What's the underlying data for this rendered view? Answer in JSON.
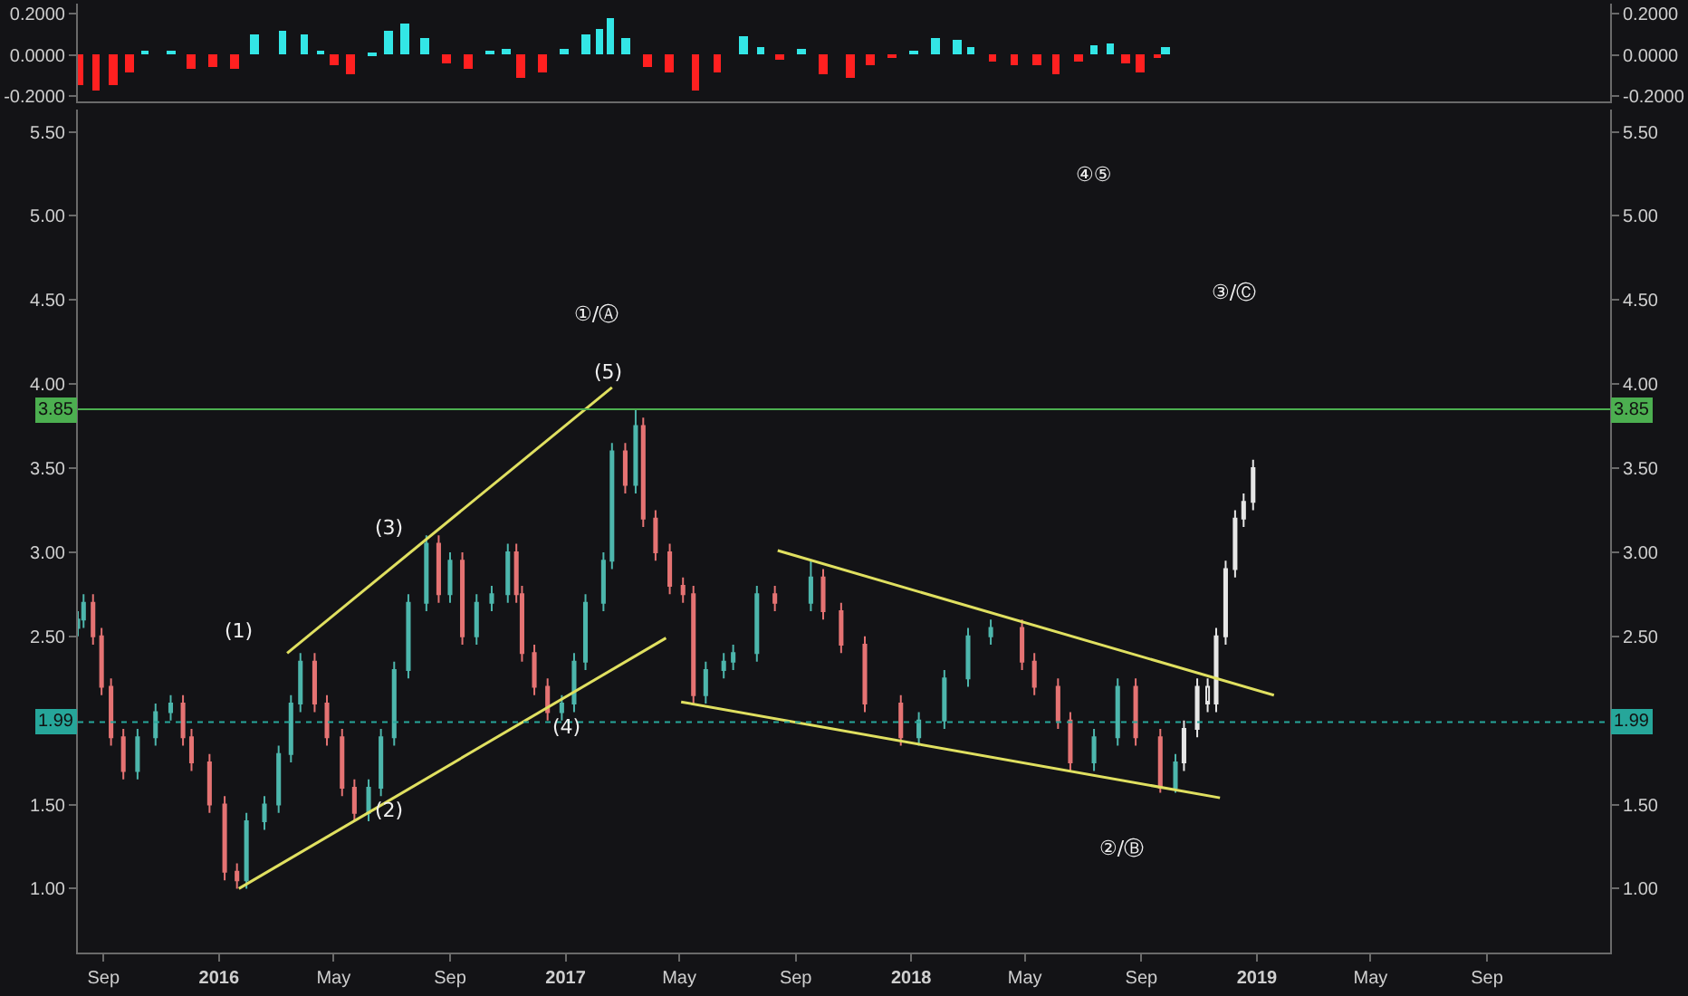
{
  "chart_data": [
    {
      "type": "bar",
      "tick_labels": "y",
      "x": [
        "2015-08-06",
        "2015-08-24",
        "2015-09-11",
        "2015-09-28",
        "2015-10-15",
        "2015-11-11",
        "2015-12-03",
        "2015-12-26",
        "2016-01-18",
        "2016-02-08",
        "2016-03-08",
        "2016-03-31",
        "2016-04-17",
        "2016-05-02",
        "2016-05-19",
        "2016-06-11",
        "2016-06-28",
        "2016-07-15",
        "2016-08-05",
        "2016-08-28",
        "2016-09-20",
        "2016-10-13",
        "2016-10-30",
        "2016-11-14",
        "2016-12-07",
        "2016-12-30",
        "2017-01-22",
        "2017-02-06",
        "2017-02-17",
        "2017-03-06",
        "2017-03-29",
        "2017-04-21",
        "2017-05-18",
        "2017-06-10",
        "2017-07-08",
        "2017-07-26",
        "2017-08-15",
        "2017-09-07",
        "2017-09-30",
        "2017-10-29",
        "2017-11-19",
        "2017-12-12",
        "2018-01-03",
        "2018-01-26",
        "2018-02-18",
        "2018-03-05",
        "2018-03-28",
        "2018-04-20",
        "2018-05-13",
        "2018-06-03",
        "2018-06-26",
        "2018-07-13",
        "2018-07-30",
        "2018-08-16",
        "2018-08-31",
        "2018-09-18",
        "2018-09-27"
      ],
      "values": [
        -0.15,
        -0.17,
        -0.15,
        -0.08,
        0.02,
        0.02,
        -0.07,
        -0.06,
        -0.07,
        0.1,
        0.12,
        0.1,
        0.02,
        -0.05,
        -0.09,
        0.01,
        0.12,
        0.15,
        0.08,
        -0.04,
        -0.07,
        0.02,
        0.03,
        -0.11,
        -0.08,
        0.03,
        0.1,
        0.13,
        0.18,
        0.08,
        -0.06,
        -0.08,
        -0.17,
        -0.08,
        0.09,
        0.04,
        -0.02,
        0.03,
        -0.09,
        -0.11,
        -0.05,
        -0.01,
        0.02,
        0.08,
        0.07,
        0.04,
        -0.03,
        -0.05,
        -0.05,
        -0.09,
        -0.03,
        0.05,
        0.06,
        -0.04,
        -0.08,
        -0.01,
        0.04
      ],
      "colors": [
        "#ff2020",
        "#ff2020",
        "#ff2020",
        "#ff2020",
        "#33e6e6",
        "#33e6e6",
        "#ff2020",
        "#ff2020",
        "#ff2020",
        "#33e6e6",
        "#33e6e6",
        "#33e6e6",
        "#33e6e6",
        "#ff2020",
        "#ff2020",
        "#33e6e6",
        "#33e6e6",
        "#33e6e6",
        "#33e6e6",
        "#ff2020",
        "#ff2020",
        "#33e6e6",
        "#33e6e6",
        "#ff2020",
        "#ff2020",
        "#33e6e6",
        "#33e6e6",
        "#33e6e6",
        "#33e6e6",
        "#33e6e6",
        "#ff2020",
        "#ff2020",
        "#ff2020",
        "#ff2020",
        "#33e6e6",
        "#33e6e6",
        "#ff2020",
        "#33e6e6",
        "#ff2020",
        "#ff2020",
        "#ff2020",
        "#ff2020",
        "#33e6e6",
        "#33e6e6",
        "#33e6e6",
        "#33e6e6",
        "#ff2020",
        "#ff2020",
        "#ff2020",
        "#ff2020",
        "#ff2020",
        "#33e6e6",
        "#33e6e6",
        "#ff2020",
        "#ff2020",
        "#ff2020",
        "#33e6e6"
      ],
      "xlim": [
        "2015-08-05",
        "2020-01-09"
      ],
      "ylim": [
        -0.225,
        0.25
      ],
      "yticks": [
        {
          "value": 0.2,
          "label": "0.2000"
        },
        {
          "value": 0,
          "label": "0.0000"
        },
        {
          "value": -0.2,
          "label": "-0.2000"
        }
      ],
      "y2lim": [
        -0.225,
        0.25
      ],
      "y2ticks": [
        {
          "value": 0.2,
          "label": "0.2000"
        },
        {
          "value": 0,
          "label": "0.0000"
        },
        {
          "value": -0.2,
          "label": "-0.2000"
        }
      ]
    },
    {
      "type": "candlestick",
      "series": [
        {
          "type": "candlestick",
          "color": "#4db6ac",
          "x": [
            "2015-08-05",
            "2015-08-11",
            "2015-10-07",
            "2015-10-26",
            "2015-11-11",
            "2016-01-30",
            "2016-02-18",
            "2016-03-04",
            "2016-03-17",
            "2016-03-27",
            "2016-06-07",
            "2016-06-20",
            "2016-07-04",
            "2016-07-19",
            "2016-08-07",
            "2016-09-01",
            "2016-09-29",
            "2016-10-15",
            "2016-11-01",
            "2016-12-28",
            "2017-01-10",
            "2017-01-22",
            "2017-02-10",
            "2017-02-19",
            "2017-03-16",
            "2017-05-29",
            "2017-06-17",
            "2017-06-27",
            "2017-07-22",
            "2017-09-17",
            "2018-01-09",
            "2018-02-05",
            "2018-03-02",
            "2018-03-26",
            "2018-07-13",
            "2018-08-07",
            "2018-10-07"
          ],
          "ohlc": [
            [
              2.55,
              2.65,
              2.5,
              2.6
            ],
            [
              2.6,
              2.75,
              2.55,
              2.7
            ],
            [
              1.7,
              1.95,
              1.65,
              1.9
            ],
            [
              1.9,
              2.1,
              1.85,
              2.05
            ],
            [
              2.05,
              2.15,
              2.0,
              2.1
            ],
            [
              1.05,
              1.45,
              1.0,
              1.4
            ],
            [
              1.4,
              1.55,
              1.35,
              1.5
            ],
            [
              1.5,
              1.85,
              1.45,
              1.8
            ],
            [
              1.8,
              2.15,
              1.75,
              2.1
            ],
            [
              2.1,
              2.4,
              2.05,
              2.35
            ],
            [
              1.45,
              1.65,
              1.4,
              1.6
            ],
            [
              1.6,
              1.95,
              1.55,
              1.9
            ],
            [
              1.9,
              2.35,
              1.85,
              2.3
            ],
            [
              2.3,
              2.75,
              2.25,
              2.7
            ],
            [
              2.7,
              3.1,
              2.65,
              3.05
            ],
            [
              2.75,
              3.0,
              2.7,
              2.95
            ],
            [
              2.5,
              2.75,
              2.45,
              2.7
            ],
            [
              2.7,
              2.8,
              2.65,
              2.75
            ],
            [
              2.75,
              3.05,
              2.7,
              3.0
            ],
            [
              2.05,
              2.15,
              2.0,
              2.1
            ],
            [
              2.1,
              2.4,
              2.05,
              2.35
            ],
            [
              2.35,
              2.75,
              2.3,
              2.7
            ],
            [
              2.7,
              3.0,
              2.65,
              2.95
            ],
            [
              2.95,
              3.65,
              2.9,
              3.6
            ],
            [
              3.4,
              3.85,
              3.35,
              3.75
            ],
            [
              2.15,
              2.35,
              2.1,
              2.3
            ],
            [
              2.3,
              2.4,
              2.25,
              2.35
            ],
            [
              2.35,
              2.45,
              2.3,
              2.4
            ],
            [
              2.4,
              2.8,
              2.35,
              2.75
            ],
            [
              2.7,
              2.95,
              2.65,
              2.85
            ],
            [
              1.9,
              2.05,
              1.85,
              2.0
            ],
            [
              2.0,
              2.3,
              1.95,
              2.25
            ],
            [
              2.25,
              2.55,
              2.2,
              2.5
            ],
            [
              2.5,
              2.6,
              2.45,
              2.55
            ],
            [
              1.75,
              1.95,
              1.7,
              1.9
            ],
            [
              1.9,
              2.25,
              1.85,
              2.2
            ],
            [
              1.6,
              1.8,
              1.57,
              1.75
            ]
          ]
        },
        {
          "type": "candlestick",
          "color": "#e57373",
          "x": [
            "2015-08-21",
            "2015-08-30",
            "2015-09-09",
            "2015-09-22",
            "2015-11-24",
            "2015-12-03",
            "2015-12-22",
            "2016-01-07",
            "2016-01-20",
            "2016-04-11",
            "2016-04-24",
            "2016-05-10",
            "2016-05-23",
            "2016-08-20",
            "2016-09-14",
            "2016-11-10",
            "2016-11-16",
            "2016-11-29",
            "2016-12-13",
            "2017-03-05",
            "2017-03-24",
            "2017-04-06",
            "2017-04-21",
            "2017-05-05",
            "2017-05-16",
            "2017-08-10",
            "2017-09-30",
            "2017-10-19",
            "2017-11-13",
            "2017-12-21",
            "2018-04-28",
            "2018-05-11",
            "2018-06-05",
            "2018-06-18",
            "2018-08-26",
            "2018-09-21"
          ],
          "ohlc": [
            [
              2.7,
              2.75,
              2.45,
              2.5
            ],
            [
              2.5,
              2.55,
              2.15,
              2.2
            ],
            [
              2.2,
              2.25,
              1.85,
              1.9
            ],
            [
              1.9,
              1.95,
              1.65,
              1.7
            ],
            [
              2.1,
              2.15,
              1.85,
              1.9
            ],
            [
              1.9,
              1.95,
              1.7,
              1.75
            ],
            [
              1.75,
              1.8,
              1.45,
              1.5
            ],
            [
              1.5,
              1.55,
              1.05,
              1.1
            ],
            [
              1.1,
              1.15,
              1.0,
              1.05
            ],
            [
              2.35,
              2.4,
              2.05,
              2.1
            ],
            [
              2.1,
              2.15,
              1.85,
              1.9
            ],
            [
              1.9,
              1.95,
              1.55,
              1.6
            ],
            [
              1.6,
              1.65,
              1.4,
              1.45
            ],
            [
              3.05,
              3.1,
              2.7,
              2.75
            ],
            [
              2.95,
              3.0,
              2.45,
              2.5
            ],
            [
              3.0,
              3.05,
              2.7,
              2.75
            ],
            [
              2.75,
              2.8,
              2.35,
              2.4
            ],
            [
              2.4,
              2.45,
              2.15,
              2.2
            ],
            [
              2.2,
              2.25,
              2.0,
              2.05
            ],
            [
              3.6,
              3.65,
              3.35,
              3.4
            ],
            [
              3.75,
              3.8,
              3.15,
              3.2
            ],
            [
              3.2,
              3.25,
              2.95,
              3.0
            ],
            [
              3.0,
              3.05,
              2.75,
              2.8
            ],
            [
              2.8,
              2.85,
              2.7,
              2.75
            ],
            [
              2.75,
              2.8,
              2.1,
              2.15
            ],
            [
              2.75,
              2.8,
              2.65,
              2.7
            ],
            [
              2.85,
              2.9,
              2.6,
              2.65
            ],
            [
              2.65,
              2.7,
              2.4,
              2.45
            ],
            [
              2.45,
              2.5,
              2.05,
              2.1
            ],
            [
              2.1,
              2.15,
              1.85,
              1.9
            ],
            [
              2.55,
              2.6,
              2.3,
              2.35
            ],
            [
              2.35,
              2.4,
              2.15,
              2.2
            ],
            [
              2.2,
              2.25,
              1.95,
              2.0
            ],
            [
              2.0,
              2.05,
              1.7,
              1.75
            ],
            [
              2.2,
              2.25,
              1.85,
              1.9
            ],
            [
              1.9,
              1.95,
              1.57,
              1.6
            ]
          ]
        },
        {
          "type": "candlestick",
          "color": "#e6e6e6",
          "x": [
            "2018-10-16",
            "2018-10-30",
            "2018-11-10",
            "2018-11-19",
            "2018-11-29",
            "2018-12-09",
            "2018-12-18",
            "2018-12-28"
          ],
          "ohlc": [
            [
              1.75,
              2.0,
              1.7,
              1.95
            ],
            [
              1.95,
              2.25,
              1.9,
              2.2
            ],
            [
              2.2,
              2.25,
              2.05,
              2.1
            ],
            [
              2.1,
              2.55,
              2.05,
              2.5
            ],
            [
              2.5,
              2.95,
              2.45,
              2.9
            ],
            [
              2.9,
              3.25,
              2.85,
              3.2
            ],
            [
              3.2,
              3.35,
              3.15,
              3.3
            ],
            [
              3.3,
              3.55,
              3.25,
              3.5
            ]
          ]
        },
        {
          "type": "line",
          "color": "#e0e060",
          "x": [
            "2016-03-13",
            "2017-02-19"
          ],
          "values": [
            2.4,
            3.98
          ]
        },
        {
          "type": "line",
          "color": "#e0e060",
          "x": [
            "2016-01-22",
            "2017-04-17"
          ],
          "values": [
            1.0,
            2.49
          ]
        },
        {
          "type": "line",
          "color": "#e0e060",
          "x": [
            "2017-08-13",
            "2019-01-19"
          ],
          "values": [
            3.01,
            2.15
          ]
        },
        {
          "type": "line",
          "color": "#e0e060",
          "x": [
            "2017-05-03",
            "2018-11-23"
          ],
          "values": [
            2.11,
            1.54
          ]
        }
      ],
      "ref_lines": [
        {
          "axis": "y",
          "value": 3.85,
          "label": "3.85",
          "color": "#4caf50",
          "line_style": "solid"
        },
        {
          "axis": "y",
          "value": 1.99,
          "label": "1.99",
          "color": "#26a69a",
          "line_style": "dotted"
        }
      ],
      "annotations": [
        "(1)",
        "(2)",
        "(3)",
        "(4)",
        "(5)",
        "①/Ⓐ",
        "④⑤",
        "③/Ⓒ",
        "②/Ⓑ"
      ],
      "xlim": [
        "2015-08-05",
        "2020-01-09"
      ],
      "xticks": [
        {
          "value": "2015-09-01",
          "label": "Sep"
        },
        {
          "value": "2016-01-01",
          "label": "2016"
        },
        {
          "value": "2016-05-01",
          "label": "May"
        },
        {
          "value": "2016-09-01",
          "label": "Sep"
        },
        {
          "value": "2017-01-01",
          "label": "2017"
        },
        {
          "value": "2017-05-01",
          "label": "May"
        },
        {
          "value": "2017-09-01",
          "label": "Sep"
        },
        {
          "value": "2018-01-01",
          "label": "2018"
        },
        {
          "value": "2018-05-01",
          "label": "May"
        },
        {
          "value": "2018-09-01",
          "label": "Sep"
        },
        {
          "value": "2019-01-01",
          "label": "2019"
        },
        {
          "value": "2019-05-01",
          "label": "May"
        },
        {
          "value": "2019-09-01",
          "label": "Sep"
        }
      ],
      "ylim": [
        0.62,
        5.63
      ],
      "yticks": [
        {
          "value": 1,
          "label": "1.00"
        },
        {
          "value": 1.5,
          "label": "1.50"
        },
        {
          "value": 2,
          "label": null
        },
        {
          "value": 2.5,
          "label": "2.50"
        },
        {
          "value": 3,
          "label": "3.00"
        },
        {
          "value": 3.5,
          "label": "3.50"
        },
        {
          "value": 4,
          "label": "4.00"
        },
        {
          "value": 4.5,
          "label": "4.50"
        },
        {
          "value": 5,
          "label": "5.00"
        },
        {
          "value": 5.5,
          "label": "5.50"
        }
      ],
      "y2lim": [
        0.62,
        5.63
      ],
      "y2ticks": [
        {
          "value": 1,
          "label": "1.00"
        },
        {
          "value": 1.5,
          "label": "1.50"
        },
        {
          "value": 2,
          "label": null
        },
        {
          "value": 2.5,
          "label": "2.50"
        },
        {
          "value": 3,
          "label": "3.00"
        },
        {
          "value": 3.5,
          "label": "3.50"
        },
        {
          "value": 4,
          "label": "4.00"
        },
        {
          "value": 4.5,
          "label": "4.50"
        },
        {
          "value": 5,
          "label": "5.00"
        },
        {
          "value": 5.5,
          "label": "5.50"
        }
      ]
    }
  ]
}
